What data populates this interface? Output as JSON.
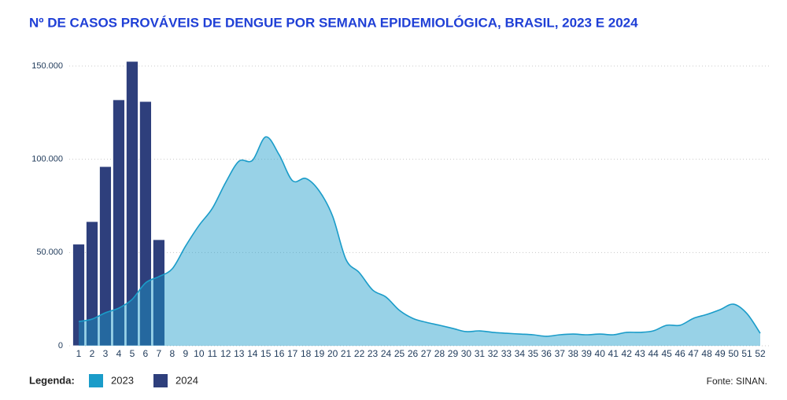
{
  "chart_data": {
    "type": "combo",
    "title": "Nº DE CASOS PROVÁVEIS DE DENGUE POR SEMANA EPIDEMIOLÓGICA, BRASIL, 2023 E 2024",
    "categories": [
      "1",
      "2",
      "3",
      "4",
      "5",
      "6",
      "7",
      "8",
      "9",
      "10",
      "11",
      "12",
      "13",
      "14",
      "15",
      "16",
      "17",
      "18",
      "19",
      "20",
      "21",
      "22",
      "23",
      "24",
      "25",
      "26",
      "27",
      "28",
      "29",
      "30",
      "31",
      "32",
      "33",
      "34",
      "35",
      "36",
      "37",
      "38",
      "39",
      "40",
      "41",
      "42",
      "43",
      "44",
      "45",
      "46",
      "47",
      "48",
      "49",
      "50",
      "51",
      "52"
    ],
    "series": [
      {
        "name": "2023",
        "type": "area",
        "color": "#1a9cc9",
        "values": [
          13000,
          14300,
          17700,
          20200,
          24900,
          33700,
          37100,
          41300,
          53500,
          64500,
          73700,
          87600,
          99000,
          99400,
          112000,
          102400,
          88500,
          89700,
          83000,
          69500,
          46300,
          39200,
          29900,
          26100,
          19000,
          14700,
          12600,
          11000,
          9300,
          7600,
          8000,
          7200,
          6700,
          6300,
          5900,
          5100,
          5900,
          6300,
          5900,
          6300,
          5900,
          7200,
          7200,
          8000,
          11000,
          11000,
          14700,
          16800,
          19400,
          22300,
          17300,
          6700
        ]
      },
      {
        "name": "2024",
        "type": "bar",
        "color": "#2e3f7c",
        "values": [
          54500,
          66600,
          96100,
          131900,
          152500,
          131000,
          56900,
          null,
          null,
          null,
          null,
          null,
          null,
          null,
          null,
          null,
          null,
          null,
          null,
          null,
          null,
          null,
          null,
          null,
          null,
          null,
          null,
          null,
          null,
          null,
          null,
          null,
          null,
          null,
          null,
          null,
          null,
          null,
          null,
          null,
          null,
          null,
          null,
          null,
          null,
          null,
          null,
          null,
          null,
          null,
          null,
          null
        ]
      }
    ],
    "ylim": [
      0,
      160000
    ],
    "yticks": [
      0,
      {
        "value": 50000,
        "label": "50.000"
      },
      {
        "value": 100000,
        "label": "100.000"
      },
      {
        "value": 150000,
        "label": "150.000"
      }
    ],
    "grid": true,
    "legend_title": "Legenda:",
    "source": "Fonte: SINAN."
  }
}
